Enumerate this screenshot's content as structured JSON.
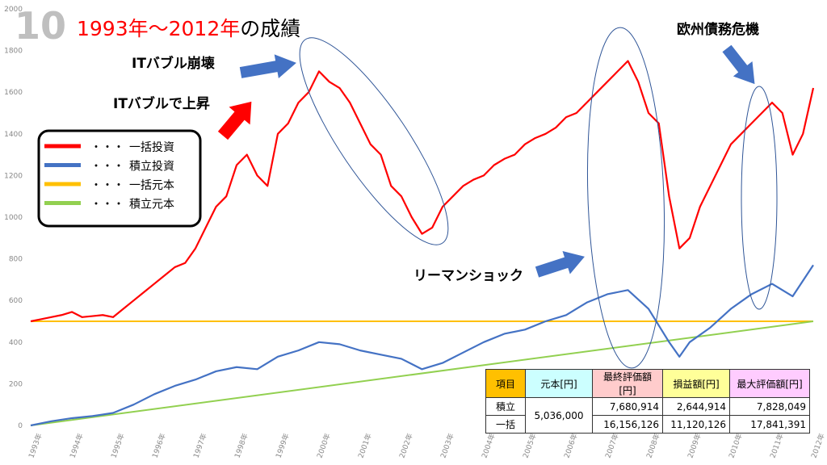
{
  "chart_data": {
    "type": "line",
    "badge": "10",
    "title_period": "1993年〜2012年",
    "title_rest": "の成績",
    "xlim": [
      1993,
      2012
    ],
    "xticks": [
      {
        "value": 1993,
        "label": "1993年"
      },
      {
        "value": 1994,
        "label": "1994年"
      },
      {
        "value": 1995,
        "label": "1995年"
      },
      {
        "value": 1996,
        "label": "1996年"
      },
      {
        "value": 1997,
        "label": "1997年"
      },
      {
        "value": 1998,
        "label": "1998年"
      },
      {
        "value": 1999,
        "label": "1999年"
      },
      {
        "value": 2000,
        "label": "2000年"
      },
      {
        "value": 2001,
        "label": "2001年"
      },
      {
        "value": 2002,
        "label": "2002年"
      },
      {
        "value": 2003,
        "label": "2003年"
      },
      {
        "value": 2004,
        "label": "2004年"
      },
      {
        "value": 2005,
        "label": "2005年"
      },
      {
        "value": 2006,
        "label": "2006年"
      },
      {
        "value": 2007,
        "label": "2007年"
      },
      {
        "value": 2008,
        "label": "2008年"
      },
      {
        "value": 2009,
        "label": "2009年"
      },
      {
        "value": 2010,
        "label": "2010年"
      },
      {
        "value": 2011,
        "label": "2011年"
      },
      {
        "value": 2012,
        "label": "2012年"
      }
    ],
    "ylim": [
      0,
      2000
    ],
    "yticks": [
      0,
      200,
      400,
      600,
      800,
      1000,
      1200,
      1400,
      1600,
      1800,
      2000
    ],
    "legend_dots": "・・・",
    "series": [
      {
        "name": "一括投資",
        "color": "#ff0000",
        "x": [
          1993,
          1993.25,
          1993.5,
          1993.75,
          1994,
          1994.25,
          1994.5,
          1994.75,
          1995,
          1995.25,
          1995.5,
          1995.75,
          1996,
          1996.25,
          1996.5,
          1996.75,
          1997,
          1997.25,
          1997.5,
          1997.75,
          1998,
          1998.25,
          1998.5,
          1998.75,
          1999,
          1999.25,
          1999.5,
          1999.75,
          2000,
          2000.25,
          2000.5,
          2000.75,
          2001,
          2001.25,
          2001.5,
          2001.75,
          2002,
          2002.25,
          2002.5,
          2002.75,
          2003,
          2003.25,
          2003.5,
          2003.75,
          2004,
          2004.25,
          2004.5,
          2004.75,
          2005,
          2005.25,
          2005.5,
          2005.75,
          2006,
          2006.25,
          2006.5,
          2006.75,
          2007,
          2007.25,
          2007.5,
          2007.75,
          2008,
          2008.25,
          2008.5,
          2008.75,
          2009,
          2009.25,
          2009.5,
          2009.75,
          2010,
          2010.25,
          2010.5,
          2010.75,
          2011,
          2011.25,
          2011.5,
          2011.75,
          2012
        ],
        "values": [
          500,
          510,
          520,
          530,
          545,
          520,
          525,
          530,
          520,
          560,
          600,
          640,
          680,
          720,
          760,
          780,
          850,
          950,
          1050,
          1100,
          1250,
          1300,
          1200,
          1150,
          1400,
          1450,
          1550,
          1600,
          1700,
          1650,
          1620,
          1550,
          1450,
          1350,
          1300,
          1150,
          1100,
          1000,
          920,
          950,
          1050,
          1100,
          1150,
          1180,
          1200,
          1250,
          1280,
          1300,
          1350,
          1380,
          1400,
          1430,
          1480,
          1500,
          1550,
          1600,
          1650,
          1700,
          1750,
          1650,
          1500,
          1450,
          1100,
          850,
          900,
          1050,
          1150,
          1250,
          1350,
          1400,
          1450,
          1500,
          1550,
          1500,
          1300,
          1400,
          1620
        ]
      },
      {
        "name": "積立投資",
        "color": "#4472c4",
        "x": [
          1993,
          1993.5,
          1994,
          1994.5,
          1995,
          1995.5,
          1996,
          1996.5,
          1997,
          1997.5,
          1998,
          1998.5,
          1999,
          1999.5,
          2000,
          2000.5,
          2001,
          2001.5,
          2002,
          2002.5,
          2003,
          2003.5,
          2004,
          2004.5,
          2005,
          2005.5,
          2006,
          2006.5,
          2007,
          2007.5,
          2008,
          2008.5,
          2008.75,
          2009,
          2009.5,
          2010,
          2010.5,
          2011,
          2011.5,
          2012
        ],
        "values": [
          0,
          20,
          35,
          45,
          60,
          100,
          150,
          190,
          220,
          260,
          280,
          270,
          330,
          360,
          400,
          390,
          360,
          340,
          320,
          270,
          300,
          350,
          400,
          440,
          460,
          500,
          530,
          590,
          630,
          650,
          560,
          400,
          330,
          400,
          470,
          560,
          630,
          680,
          620,
          770
        ]
      },
      {
        "name": "一括元本",
        "color": "#ffc000",
        "x": [
          1993,
          2012
        ],
        "values": [
          500,
          500
        ]
      },
      {
        "name": "積立元本",
        "color": "#92d050",
        "x": [
          1993,
          2012
        ],
        "values": [
          0,
          500
        ]
      }
    ],
    "annotations": [
      "ITバブル崩壊",
      "ITバブルで上昇",
      "リーマンショック",
      "欧州債務危機"
    ]
  },
  "table": {
    "header": [
      "項目",
      "元本[円]",
      "最終評価額[円]",
      "損益額[円]",
      "最大評価額[円]"
    ],
    "principal": "5,036,000",
    "rows": [
      {
        "label": "積立",
        "values": [
          "7,680,914",
          "2,644,914",
          "7,828,049"
        ]
      },
      {
        "label": "一括",
        "values": [
          "16,156,126",
          "11,120,126",
          "17,841,391"
        ]
      }
    ]
  }
}
